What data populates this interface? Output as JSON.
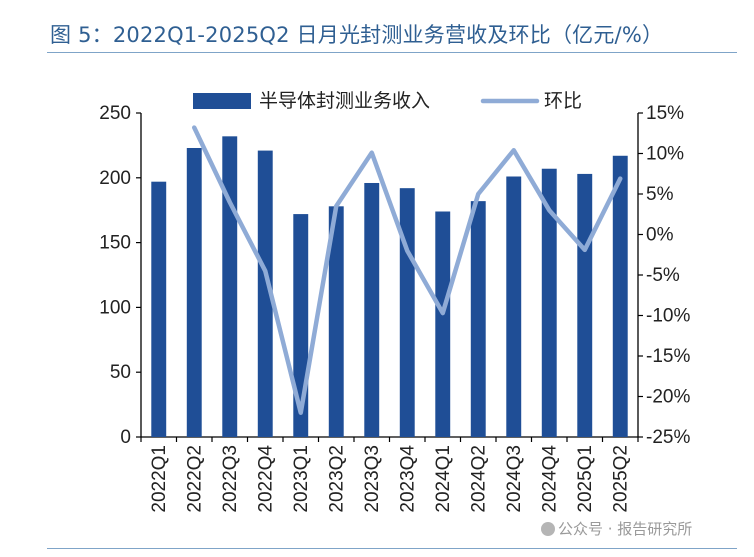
{
  "figure": {
    "title": "图 5：2022Q1-2025Q2 日月光封测业务营收及环比（亿元/%）"
  },
  "watermark": {
    "text": "公众号 · 报告研究所",
    "icon": "wechat-icon"
  },
  "colors": {
    "bar": "#1f4e96",
    "line": "#8fabd6",
    "title": "#2f5f92",
    "axis": "#000000"
  },
  "chart_data": {
    "type": "bar",
    "title": "",
    "xlabel": "",
    "ylabel": "",
    "y2label": "",
    "categories": [
      "2022Q1",
      "2022Q2",
      "2022Q3",
      "2022Q4",
      "2023Q1",
      "2023Q2",
      "2023Q3",
      "2023Q4",
      "2024Q1",
      "2024Q2",
      "2024Q3",
      "2024Q4",
      "2025Q1",
      "2025Q2"
    ],
    "series": [
      {
        "name": "半导体封测业务收入",
        "type": "bar",
        "axis": "left",
        "values": [
          197,
          223,
          232,
          221,
          172,
          178,
          196,
          192,
          174,
          182,
          201,
          207,
          203,
          217
        ]
      },
      {
        "name": "环比",
        "type": "line",
        "axis": "right",
        "unit": "%",
        "values": [
          null,
          13.2,
          4.0,
          -4.5,
          -22.0,
          3.5,
          10.1,
          -2.0,
          -9.7,
          5.0,
          10.4,
          3.0,
          -1.9,
          6.9
        ]
      }
    ],
    "ylim": [
      0,
      250
    ],
    "y_ticks": [
      "0",
      "50",
      "100",
      "150",
      "200",
      "250"
    ],
    "y2lim": [
      -25,
      15
    ],
    "y2_ticks": [
      "-25%",
      "-20%",
      "-15%",
      "-10%",
      "-5%",
      "0%",
      "5%",
      "10%",
      "15%"
    ],
    "legend_position": "top",
    "grid": false
  }
}
